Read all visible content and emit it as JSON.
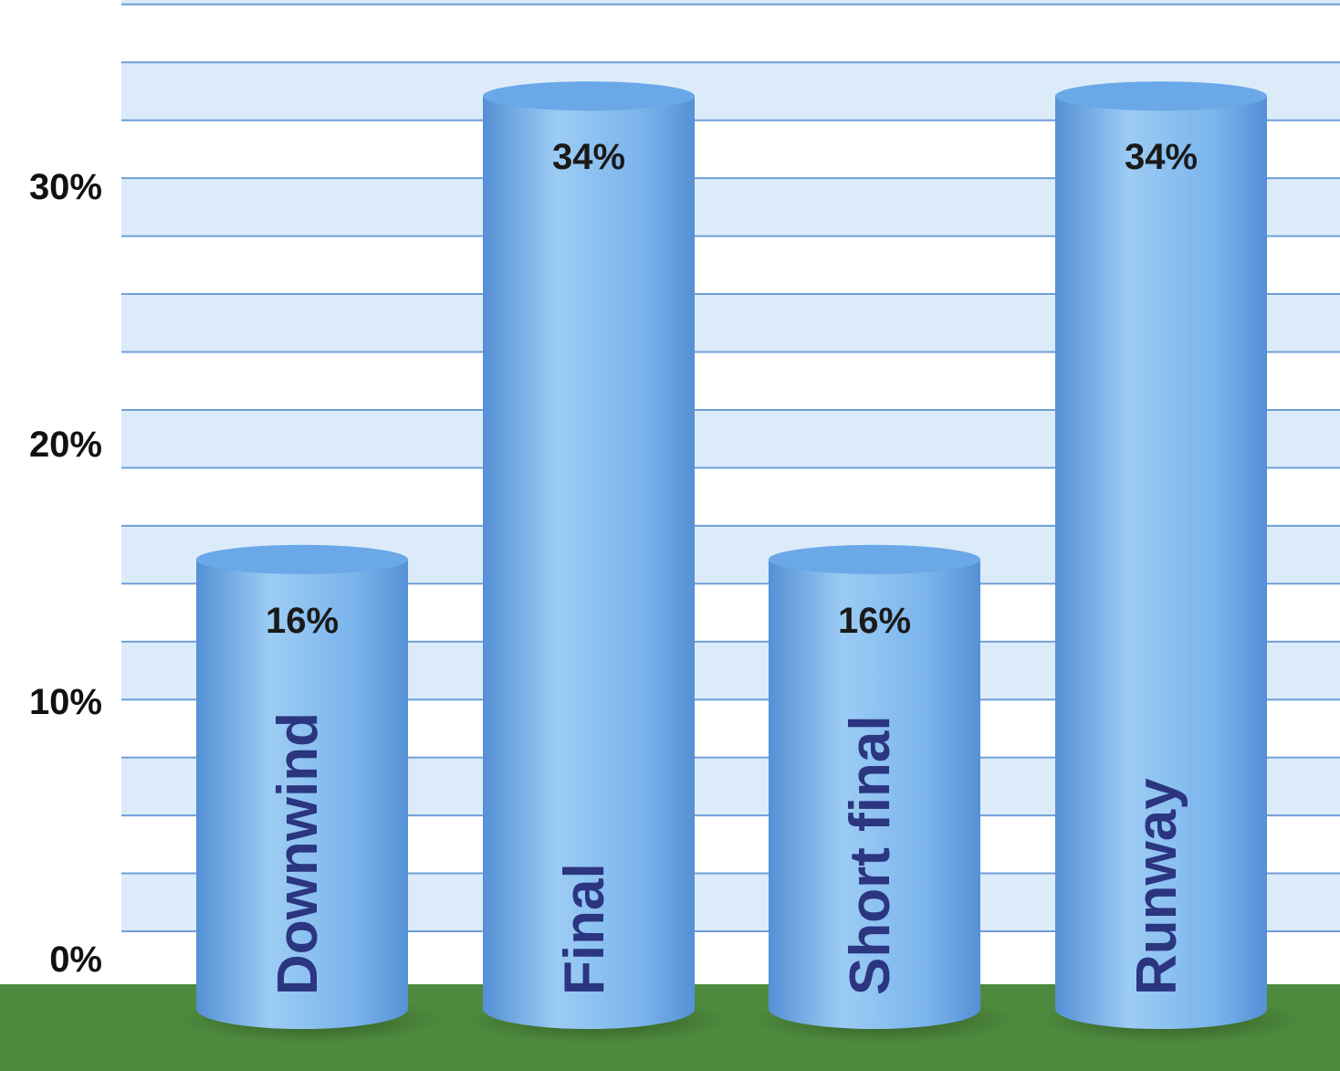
{
  "chart_data": {
    "type": "bar",
    "style": "3d-cylinder",
    "categories": [
      "Downwind",
      "Final",
      "Short final",
      "Runway"
    ],
    "values": [
      16,
      34,
      16,
      34
    ],
    "value_labels": [
      "16%",
      "34%",
      "16%",
      "34%"
    ],
    "yticks": [
      {
        "value": 0,
        "label": "0%"
      },
      {
        "value": 10,
        "label": "10%"
      },
      {
        "value": 20,
        "label": "20%"
      },
      {
        "value": 30,
        "label": "30%"
      }
    ],
    "ylim": [
      0,
      35
    ],
    "grid": true,
    "title": "",
    "xlabel": "",
    "ylabel": ""
  },
  "colors": {
    "bar_light": "#9cccf4",
    "bar_mid": "#7ab4ec",
    "bar_dark": "#5590d6",
    "bar_top": "#6aa8e8",
    "category_text": "#2b3580",
    "value_text": "#1a1a1a",
    "grid_line": "#6f9fd8",
    "band_light": "#dcebfa",
    "ground": "#4e8a3d",
    "axis_text": "#111111"
  }
}
